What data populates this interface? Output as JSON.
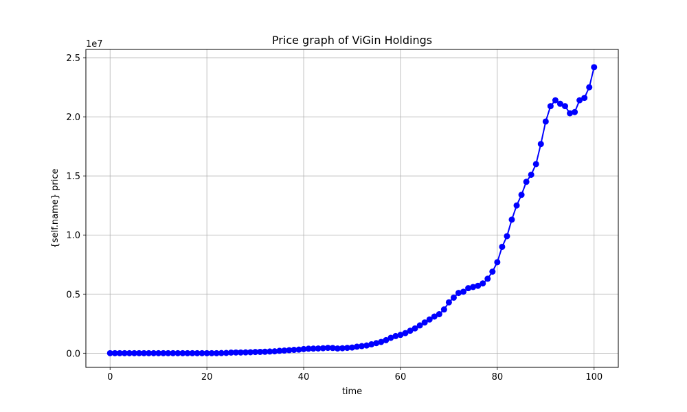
{
  "chart_data": {
    "type": "line",
    "title": "Price graph of ViGin Holdings",
    "xlabel": "time",
    "ylabel": "{self.name} price",
    "y_offset_label": "1e7",
    "xlim": [
      -5,
      105
    ],
    "ylim": [
      -1200000,
      25700000
    ],
    "grid": true,
    "x_ticks": [
      0,
      20,
      40,
      60,
      80,
      100
    ],
    "x_tick_labels": [
      "0",
      "20",
      "40",
      "60",
      "80",
      "100"
    ],
    "y_ticks": [
      0,
      5000000,
      10000000,
      15000000,
      20000000,
      25000000
    ],
    "y_tick_labels": [
      "0.0",
      "0.5",
      "1.0",
      "1.5",
      "2.0",
      "2.5"
    ],
    "series": [
      {
        "color": "#0000ff",
        "marker": "circle",
        "x": [
          0,
          1,
          2,
          3,
          4,
          5,
          6,
          7,
          8,
          9,
          10,
          11,
          12,
          13,
          14,
          15,
          16,
          17,
          18,
          19,
          20,
          21,
          22,
          23,
          24,
          25,
          26,
          27,
          28,
          29,
          30,
          31,
          32,
          33,
          34,
          35,
          36,
          37,
          38,
          39,
          40,
          41,
          42,
          43,
          44,
          45,
          46,
          47,
          48,
          49,
          50,
          51,
          52,
          53,
          54,
          55,
          56,
          57,
          58,
          59,
          60,
          61,
          62,
          63,
          64,
          65,
          66,
          67,
          68,
          69,
          70,
          71,
          72,
          73,
          74,
          75,
          76,
          77,
          78,
          79,
          80,
          81,
          82,
          83,
          84,
          85,
          86,
          87,
          88,
          89,
          90,
          91,
          92,
          93,
          94,
          95,
          96,
          97,
          98,
          99,
          100
        ],
        "values": [
          0,
          0,
          0,
          0,
          0,
          0,
          0,
          0,
          0,
          0,
          0,
          0,
          0,
          0,
          0,
          0,
          0,
          0,
          0,
          0,
          0,
          0,
          0,
          10000,
          20000,
          50000,
          60000,
          60000,
          70000,
          80000,
          100000,
          110000,
          120000,
          140000,
          160000,
          200000,
          220000,
          250000,
          280000,
          300000,
          350000,
          380000,
          390000,
          400000,
          420000,
          450000,
          440000,
          400000,
          420000,
          450000,
          480000,
          550000,
          600000,
          650000,
          750000,
          850000,
          950000,
          1100000,
          1300000,
          1450000,
          1550000,
          1700000,
          1900000,
          2100000,
          2350000,
          2600000,
          2850000,
          3100000,
          3300000,
          3700000,
          4300000,
          4700000,
          5100000,
          5200000,
          5500000,
          5600000,
          5700000,
          5900000,
          6300000,
          6900000,
          7700000,
          9000000,
          9900000,
          11300000,
          12500000,
          13400000,
          14500000,
          15100000,
          16000000,
          17700000,
          19600000,
          20900000,
          21400000,
          21100000,
          20900000,
          20300000,
          20400000,
          21400000,
          21600000,
          22500000,
          24200000
        ]
      }
    ]
  }
}
